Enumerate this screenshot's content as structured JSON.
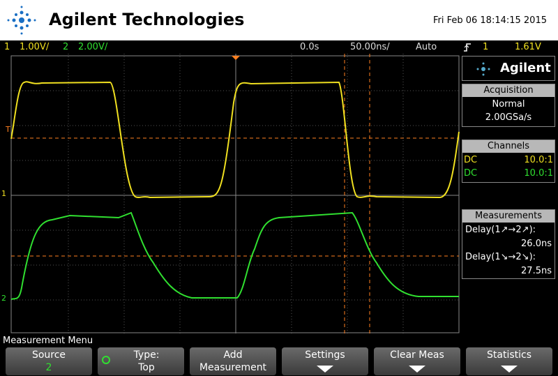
{
  "header": {
    "brand": "Agilent Technologies",
    "datetime": "Fri Feb 06 18:14:15 2015"
  },
  "status_bar": {
    "ch1_label": "1",
    "ch1_scale": "1.00V/",
    "ch2_label": "2",
    "ch2_scale": "2.00V/",
    "time_offset": "0.0s",
    "time_scale": "50.00ns/",
    "trigger_mode": "Auto",
    "trigger_source": "1",
    "trigger_level": "1.61V"
  },
  "screen_markers": {
    "trigger": "T",
    "ch1": "1",
    "ch2": "2"
  },
  "side_panel": {
    "logo": "Agilent",
    "acquisition": {
      "title": "Acquisition",
      "mode": "Normal",
      "rate": "2.00GSa/s"
    },
    "channels": {
      "title": "Channels",
      "rows": [
        [
          "DC",
          "10.0:1"
        ],
        [
          "DC",
          "10.0:1"
        ]
      ]
    },
    "measurements": {
      "title": "Measurements",
      "items": [
        {
          "label": "Delay(1↗→2↗):",
          "value": "26.0ns"
        },
        {
          "label": "Delay(1↘→2↘):",
          "value": "27.5ns"
        }
      ]
    }
  },
  "menu": {
    "title": "Measurement Menu",
    "softkeys": [
      [
        "Source",
        "2"
      ],
      [
        "Type:",
        "Top"
      ],
      [
        "Add",
        "Measurement"
      ],
      [
        "Settings"
      ],
      [
        "Clear Meas"
      ],
      [
        "Statistics"
      ]
    ]
  }
}
